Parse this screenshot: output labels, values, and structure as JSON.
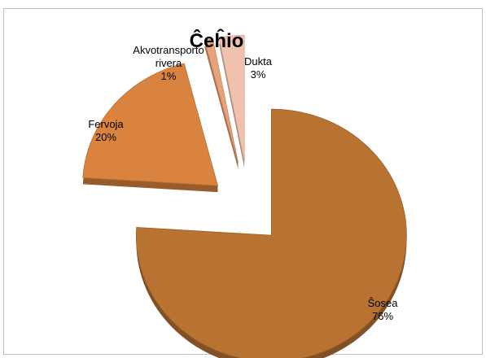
{
  "chart_data": {
    "type": "pie",
    "title": "Ĉeĥio",
    "exploded": true,
    "three_d": true,
    "legend": "none",
    "slices": [
      {
        "label": "Ŝosea",
        "value": 76,
        "percent_label": "76%",
        "color": "#b87333"
      },
      {
        "label": "Fervoja",
        "value": 20,
        "percent_label": "20%",
        "color": "#d9833f"
      },
      {
        "label": "Akvotransporto rivera",
        "value": 1,
        "percent_label": "1%",
        "color": "#e8a27a"
      },
      {
        "label": "Dukta",
        "value": 3,
        "percent_label": "3%",
        "color": "#f0c2ad"
      }
    ]
  }
}
